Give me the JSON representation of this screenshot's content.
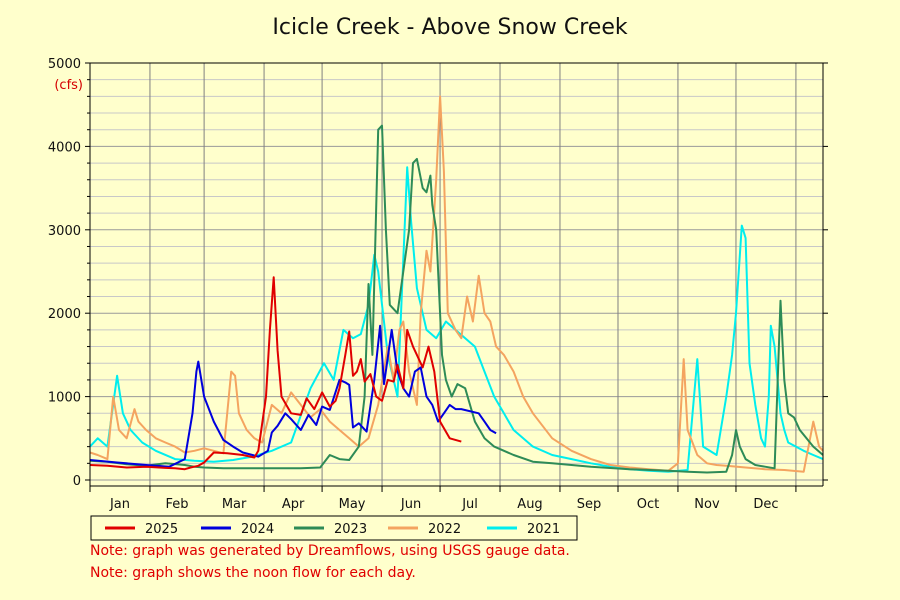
{
  "chart_data": {
    "type": "line",
    "title": "Icicle Creek - Above Snow Creek",
    "ylabel_unit": "(cfs)",
    "xlabel": "",
    "ylim": [
      0,
      5000
    ],
    "y_ticks": [
      "0",
      "1000",
      "2000",
      "3000",
      "4000",
      "5000"
    ],
    "months": [
      "Jan",
      "Feb",
      "Mar",
      "Apr",
      "May",
      "Jun",
      "Jul",
      "Aug",
      "Sep",
      "Oct",
      "Nov",
      "Dec"
    ],
    "grid": true,
    "legend_position": "bottom",
    "x_unit": "day_of_year",
    "series": [
      {
        "name": "2025",
        "color": "#e00000",
        "points": [
          [
            1,
            180
          ],
          [
            10,
            170
          ],
          [
            20,
            150
          ],
          [
            30,
            160
          ],
          [
            40,
            145
          ],
          [
            45,
            140
          ],
          [
            50,
            130
          ],
          [
            53,
            150
          ],
          [
            57,
            170
          ],
          [
            60,
            210
          ],
          [
            65,
            330
          ],
          [
            72,
            320
          ],
          [
            80,
            300
          ],
          [
            86,
            270
          ],
          [
            88,
            350
          ],
          [
            92,
            1000
          ],
          [
            94,
            1800
          ],
          [
            96,
            2430
          ],
          [
            98,
            1550
          ],
          [
            100,
            1000
          ],
          [
            105,
            800
          ],
          [
            110,
            780
          ],
          [
            113,
            980
          ],
          [
            117,
            850
          ],
          [
            121,
            1050
          ],
          [
            125,
            880
          ],
          [
            128,
            950
          ],
          [
            130,
            1100
          ],
          [
            133,
            1500
          ],
          [
            135,
            1780
          ],
          [
            137,
            1250
          ],
          [
            139,
            1300
          ],
          [
            141,
            1450
          ],
          [
            143,
            1180
          ],
          [
            146,
            1270
          ],
          [
            149,
            1000
          ],
          [
            152,
            950
          ],
          [
            155,
            1200
          ],
          [
            158,
            1180
          ],
          [
            160,
            1380
          ],
          [
            163,
            1100
          ],
          [
            165,
            1800
          ],
          [
            168,
            1600
          ],
          [
            170,
            1500
          ],
          [
            173,
            1350
          ],
          [
            176,
            1600
          ],
          [
            179,
            1300
          ],
          [
            182,
            700
          ],
          [
            187,
            500
          ],
          [
            193,
            460
          ]
        ]
      },
      {
        "name": "2024",
        "color": "#0000dd",
        "points": [
          [
            1,
            240
          ],
          [
            15,
            210
          ],
          [
            30,
            180
          ],
          [
            42,
            160
          ],
          [
            50,
            250
          ],
          [
            54,
            800
          ],
          [
            56,
            1300
          ],
          [
            57,
            1420
          ],
          [
            60,
            1000
          ],
          [
            65,
            700
          ],
          [
            70,
            480
          ],
          [
            75,
            400
          ],
          [
            80,
            330
          ],
          [
            85,
            300
          ],
          [
            88,
            280
          ],
          [
            93,
            350
          ],
          [
            95,
            570
          ],
          [
            98,
            650
          ],
          [
            102,
            800
          ],
          [
            105,
            730
          ],
          [
            110,
            600
          ],
          [
            114,
            780
          ],
          [
            118,
            660
          ],
          [
            121,
            880
          ],
          [
            125,
            840
          ],
          [
            130,
            1200
          ],
          [
            133,
            1170
          ],
          [
            135,
            1140
          ],
          [
            137,
            630
          ],
          [
            140,
            680
          ],
          [
            144,
            580
          ],
          [
            148,
            1200
          ],
          [
            151,
            1850
          ],
          [
            153,
            1150
          ],
          [
            157,
            1800
          ],
          [
            160,
            1300
          ],
          [
            163,
            1100
          ],
          [
            166,
            1000
          ],
          [
            169,
            1300
          ],
          [
            172,
            1350
          ],
          [
            175,
            1000
          ],
          [
            178,
            900
          ],
          [
            181,
            700
          ],
          [
            184,
            800
          ],
          [
            187,
            900
          ],
          [
            190,
            850
          ],
          [
            193,
            850
          ],
          [
            202,
            800
          ],
          [
            205,
            700
          ],
          [
            208,
            600
          ],
          [
            211,
            560
          ]
        ]
      },
      {
        "name": "2023",
        "color": "#2e8b57",
        "points": [
          [
            1,
            230
          ],
          [
            10,
            220
          ],
          [
            20,
            190
          ],
          [
            30,
            170
          ],
          [
            40,
            200
          ],
          [
            50,
            180
          ],
          [
            55,
            160
          ],
          [
            60,
            150
          ],
          [
            70,
            140
          ],
          [
            80,
            140
          ],
          [
            90,
            140
          ],
          [
            100,
            140
          ],
          [
            110,
            140
          ],
          [
            120,
            150
          ],
          [
            125,
            300
          ],
          [
            130,
            250
          ],
          [
            135,
            240
          ],
          [
            140,
            400
          ],
          [
            143,
            1000
          ],
          [
            145,
            2350
          ],
          [
            147,
            1500
          ],
          [
            150,
            4200
          ],
          [
            152,
            4250
          ],
          [
            154,
            3000
          ],
          [
            156,
            2100
          ],
          [
            160,
            2000
          ],
          [
            163,
            2500
          ],
          [
            166,
            3000
          ],
          [
            168,
            3800
          ],
          [
            170,
            3850
          ],
          [
            173,
            3500
          ],
          [
            175,
            3450
          ],
          [
            177,
            3650
          ],
          [
            178,
            3300
          ],
          [
            180,
            3000
          ],
          [
            183,
            1500
          ],
          [
            185,
            1200
          ],
          [
            188,
            1000
          ],
          [
            191,
            1150
          ],
          [
            195,
            1100
          ],
          [
            200,
            700
          ],
          [
            205,
            500
          ],
          [
            210,
            400
          ],
          [
            220,
            300
          ],
          [
            230,
            220
          ],
          [
            240,
            200
          ],
          [
            260,
            160
          ],
          [
            280,
            130
          ],
          [
            300,
            110
          ],
          [
            310,
            100
          ],
          [
            320,
            90
          ],
          [
            330,
            100
          ],
          [
            333,
            300
          ],
          [
            335,
            600
          ],
          [
            337,
            400
          ],
          [
            340,
            250
          ],
          [
            345,
            180
          ],
          [
            350,
            160
          ],
          [
            355,
            140
          ],
          [
            358,
            2150
          ],
          [
            360,
            1200
          ],
          [
            362,
            800
          ],
          [
            365,
            750
          ],
          [
            368,
            600
          ],
          [
            375,
            400
          ],
          [
            380,
            300
          ]
        ]
      },
      {
        "name": "2022",
        "color": "#f4a460",
        "points": [
          [
            1,
            330
          ],
          [
            5,
            300
          ],
          [
            10,
            250
          ],
          [
            13,
            1000
          ],
          [
            16,
            600
          ],
          [
            20,
            500
          ],
          [
            24,
            850
          ],
          [
            26,
            700
          ],
          [
            30,
            600
          ],
          [
            35,
            500
          ],
          [
            40,
            450
          ],
          [
            45,
            400
          ],
          [
            50,
            330
          ],
          [
            55,
            350
          ],
          [
            60,
            380
          ],
          [
            65,
            350
          ],
          [
            70,
            320
          ],
          [
            74,
            1300
          ],
          [
            76,
            1250
          ],
          [
            78,
            800
          ],
          [
            82,
            600
          ],
          [
            86,
            500
          ],
          [
            90,
            450
          ],
          [
            95,
            900
          ],
          [
            100,
            800
          ],
          [
            105,
            1050
          ],
          [
            110,
            900
          ],
          [
            115,
            750
          ],
          [
            120,
            850
          ],
          [
            125,
            700
          ],
          [
            130,
            600
          ],
          [
            135,
            500
          ],
          [
            140,
            400
          ],
          [
            145,
            500
          ],
          [
            150,
            900
          ],
          [
            155,
            1600
          ],
          [
            158,
            1200
          ],
          [
            161,
            1800
          ],
          [
            163,
            1900
          ],
          [
            166,
            1300
          ],
          [
            170,
            900
          ],
          [
            172,
            2000
          ],
          [
            175,
            2750
          ],
          [
            177,
            2500
          ],
          [
            180,
            3600
          ],
          [
            182,
            4600
          ],
          [
            184,
            3700
          ],
          [
            186,
            2000
          ],
          [
            190,
            1800
          ],
          [
            193,
            1700
          ],
          [
            196,
            2200
          ],
          [
            199,
            1900
          ],
          [
            202,
            2450
          ],
          [
            205,
            2000
          ],
          [
            208,
            1900
          ],
          [
            211,
            1600
          ],
          [
            215,
            1500
          ],
          [
            220,
            1300
          ],
          [
            225,
            1000
          ],
          [
            230,
            800
          ],
          [
            240,
            500
          ],
          [
            250,
            350
          ],
          [
            260,
            250
          ],
          [
            270,
            180
          ],
          [
            280,
            150
          ],
          [
            290,
            130
          ],
          [
            300,
            110
          ],
          [
            305,
            200
          ],
          [
            308,
            1450
          ],
          [
            310,
            600
          ],
          [
            315,
            300
          ],
          [
            320,
            200
          ],
          [
            325,
            180
          ],
          [
            330,
            170
          ],
          [
            340,
            150
          ],
          [
            350,
            130
          ],
          [
            360,
            120
          ],
          [
            370,
            100
          ],
          [
            375,
            700
          ],
          [
            378,
            400
          ],
          [
            380,
            350
          ]
        ]
      },
      {
        "name": "2021",
        "color": "#00eeee",
        "points": [
          [
            1,
            400
          ],
          [
            5,
            500
          ],
          [
            10,
            400
          ],
          [
            15,
            1250
          ],
          [
            18,
            800
          ],
          [
            22,
            600
          ],
          [
            28,
            450
          ],
          [
            35,
            350
          ],
          [
            45,
            250
          ],
          [
            55,
            230
          ],
          [
            65,
            220
          ],
          [
            75,
            240
          ],
          [
            85,
            280
          ],
          [
            95,
            350
          ],
          [
            105,
            450
          ],
          [
            115,
            1100
          ],
          [
            122,
            1400
          ],
          [
            127,
            1200
          ],
          [
            132,
            1800
          ],
          [
            137,
            1700
          ],
          [
            141,
            1750
          ],
          [
            145,
            2100
          ],
          [
            148,
            2700
          ],
          [
            150,
            2500
          ],
          [
            155,
            1500
          ],
          [
            160,
            1000
          ],
          [
            165,
            3750
          ],
          [
            167,
            3100
          ],
          [
            170,
            2300
          ],
          [
            175,
            1800
          ],
          [
            180,
            1700
          ],
          [
            185,
            1900
          ],
          [
            190,
            1800
          ],
          [
            195,
            1700
          ],
          [
            200,
            1600
          ],
          [
            205,
            1300
          ],
          [
            210,
            1000
          ],
          [
            215,
            800
          ],
          [
            220,
            600
          ],
          [
            230,
            400
          ],
          [
            240,
            300
          ],
          [
            250,
            250
          ],
          [
            260,
            200
          ],
          [
            270,
            160
          ],
          [
            280,
            130
          ],
          [
            290,
            110
          ],
          [
            300,
            100
          ],
          [
            310,
            120
          ],
          [
            315,
            1450
          ],
          [
            318,
            400
          ],
          [
            325,
            300
          ],
          [
            330,
            1000
          ],
          [
            333,
            1500
          ],
          [
            335,
            2000
          ],
          [
            338,
            3050
          ],
          [
            340,
            2900
          ],
          [
            342,
            1400
          ],
          [
            345,
            900
          ],
          [
            348,
            500
          ],
          [
            350,
            400
          ],
          [
            352,
            1000
          ],
          [
            353,
            1850
          ],
          [
            355,
            1600
          ],
          [
            358,
            800
          ],
          [
            360,
            600
          ],
          [
            362,
            450
          ],
          [
            366,
            400
          ],
          [
            370,
            350
          ],
          [
            375,
            300
          ],
          [
            380,
            250
          ]
        ]
      }
    ],
    "notes": [
      "Note: graph was generated by Dreamflows, using USGS gauge data.",
      "Note: graph shows the noon flow for each day."
    ]
  }
}
